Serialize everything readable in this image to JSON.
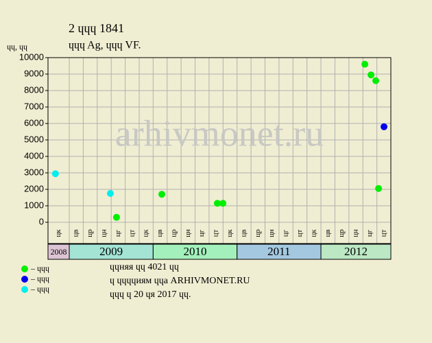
{
  "chart_data": {
    "type": "scatter",
    "title": "2 ɥɥɥ 1841",
    "subtitle": "ɥɥɥ Ag, ɥɥɥ VF.",
    "y_label": "ɥɥ, ɥɥ",
    "watermark": "arhivmonet.ru",
    "ylim": [
      0,
      10000
    ],
    "yticks": [
      0,
      1000,
      2000,
      3000,
      4000,
      5000,
      6000,
      7000,
      8000,
      9000,
      10000
    ],
    "xlim": [
      0,
      24
    ],
    "grid": true,
    "years": [
      {
        "name": "2008",
        "color": "#dcc4d4",
        "categories": [
          "цк"
        ]
      },
      {
        "name": "2009",
        "color": "#a4e4d4",
        "categories": [
          "цв",
          "цр",
          "цн",
          "цг",
          "цт",
          "цк"
        ]
      },
      {
        "name": "2010",
        "color": "#a4f0bc",
        "categories": [
          "цв",
          "цр",
          "цн",
          "цг",
          "цт",
          "цк"
        ]
      },
      {
        "name": "2011",
        "color": "#a4c8e0",
        "categories": [
          "цв",
          "цр",
          "цн",
          "цг",
          "цт",
          "цк"
        ]
      },
      {
        "name": "2012",
        "color": "#bce8c4",
        "categories": [
          "цв",
          "цр",
          "цн",
          "цг",
          "цт"
        ]
      }
    ],
    "series": [
      {
        "name": "– ɥɥɥ",
        "color": "#00ee00",
        "x": [
          4.38,
          7.62,
          11.59,
          11.99,
          22.14,
          22.58,
          22.92,
          23.12
        ],
        "values": [
          300,
          1700,
          1150,
          1150,
          9600,
          8950,
          8600,
          2050
        ]
      },
      {
        "name": "– ɥɥɥ",
        "color": "#0000ee",
        "x": [
          23.51
        ],
        "values": [
          5800
        ]
      },
      {
        "name": "– ɥɥɥ",
        "color": "#00eeee",
        "x": [
          0.35,
          3.94
        ],
        "values": [
          2950,
          1750
        ]
      }
    ],
    "notes": [
      "ɥɥняя ɥɥ 4021 ɥɥ",
      "ɥ ɥɥɥɥиям ɥɥа ARHIVMONET.RU",
      "ɥɥɥ ɥ 20 ɥя 2017 ɥɥ."
    ]
  }
}
